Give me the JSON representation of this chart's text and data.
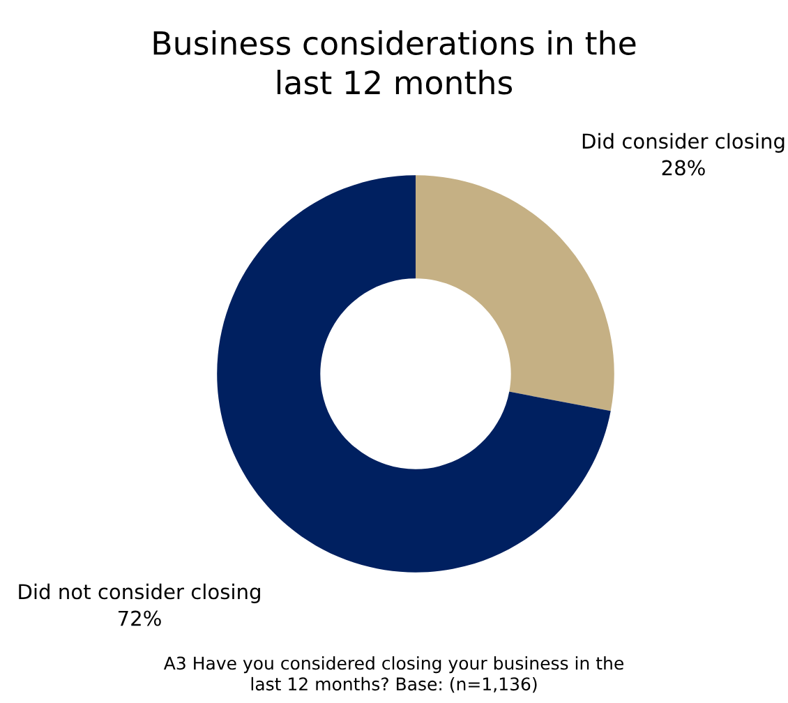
{
  "chart_data": {
    "type": "donut",
    "title": "Business considerations in the\nlast 12 months",
    "categories": [
      "Did consider closing",
      "Did not consider closing"
    ],
    "values": [
      28,
      72
    ],
    "value_labels": [
      "28%",
      "72%"
    ],
    "colors": [
      "#c5b084",
      "#002060"
    ],
    "legend": false,
    "annotations": [
      "A3 Have you considered closing your business in the\nlast 12 months? Base: (n=1,136)"
    ]
  }
}
